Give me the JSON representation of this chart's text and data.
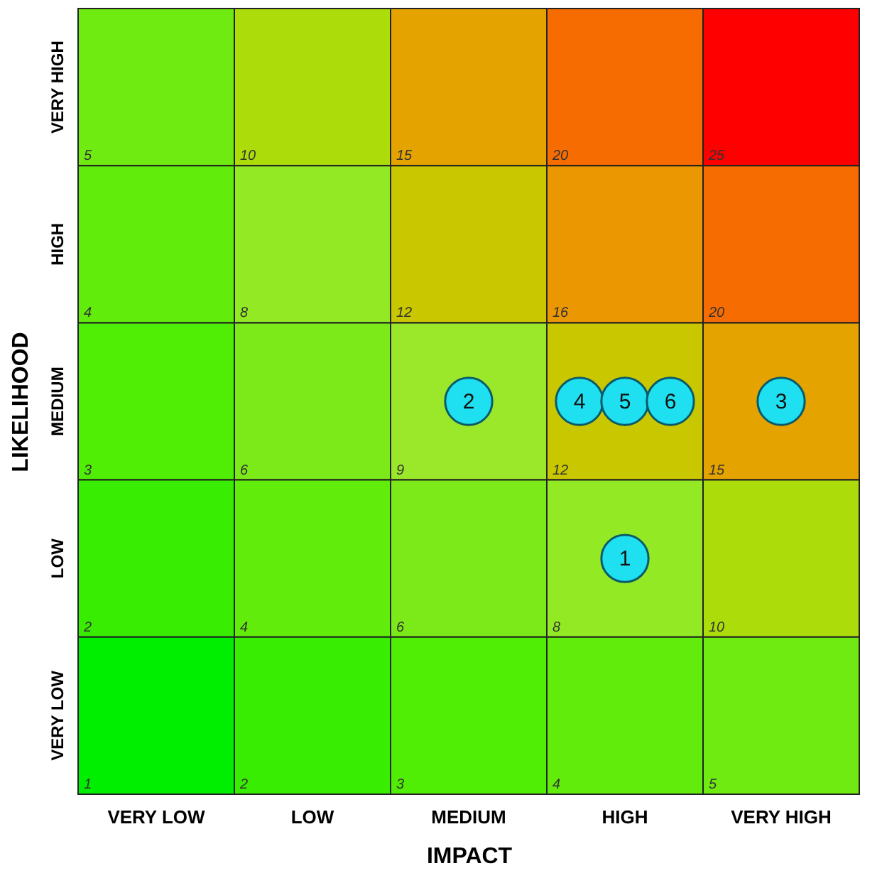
{
  "chart_data": {
    "type": "heatmap",
    "xlabel": "IMPACT",
    "ylabel": "LIKELIHOOD",
    "categories": [
      "VERY LOW",
      "LOW",
      "MEDIUM",
      "HIGH",
      "VERY HIGH"
    ],
    "y_categories": [
      "VERY HIGH",
      "HIGH",
      "MEDIUM",
      "LOW",
      "VERY LOW"
    ],
    "data_labels": true,
    "cells": [
      [
        5,
        10,
        15,
        20,
        25
      ],
      [
        4,
        8,
        12,
        16,
        20
      ],
      [
        3,
        6,
        9,
        12,
        15
      ],
      [
        2,
        4,
        6,
        8,
        10
      ],
      [
        1,
        2,
        3,
        4,
        5
      ]
    ],
    "annotations": [
      {
        "text": "1",
        "x": "HIGH",
        "y": "LOW"
      },
      {
        "text": "2",
        "x": "MEDIUM",
        "y": "MEDIUM"
      },
      {
        "text": "3",
        "x": "VERY HIGH",
        "y": "MEDIUM"
      },
      {
        "text": "4",
        "x": "HIGH",
        "y": "MEDIUM"
      },
      "5",
      "6"
    ]
  }
}
